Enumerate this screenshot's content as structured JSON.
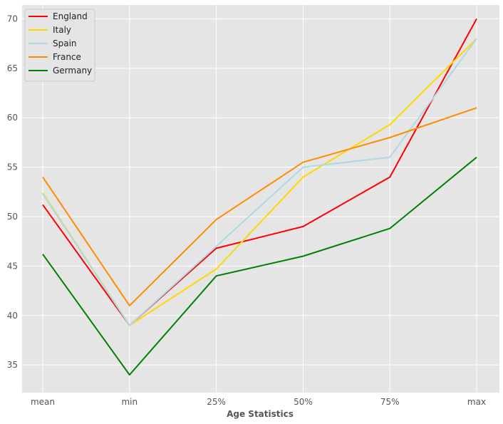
{
  "chart_data": {
    "type": "line",
    "title": "",
    "xlabel": "Age Statistics",
    "ylabel": "",
    "categories": [
      "mean",
      "min",
      "25%",
      "50%",
      "75%",
      "max"
    ],
    "ylim": [
      32.2,
      71.4
    ],
    "yticks": [
      35,
      40,
      45,
      50,
      55,
      60,
      65,
      70
    ],
    "grid": true,
    "legend_position": "top-left",
    "series": [
      {
        "name": "England",
        "color": "#ff0000",
        "values": [
          51.2,
          39.0,
          46.8,
          49.0,
          54.0,
          70.0
        ]
      },
      {
        "name": "Italy",
        "color": "#ffd700",
        "values": [
          52.4,
          39.0,
          44.7,
          54.0,
          59.3,
          68.0
        ]
      },
      {
        "name": "Spain",
        "color": "#add8e6",
        "values": [
          52.3,
          39.0,
          47.0,
          55.0,
          56.0,
          68.0
        ]
      },
      {
        "name": "France",
        "color": "#ff8c00",
        "values": [
          54.0,
          41.0,
          49.7,
          55.5,
          58.0,
          61.0
        ]
      },
      {
        "name": "Germany",
        "color": "#008000",
        "values": [
          46.2,
          34.0,
          44.0,
          46.0,
          48.8,
          56.0
        ]
      }
    ]
  }
}
